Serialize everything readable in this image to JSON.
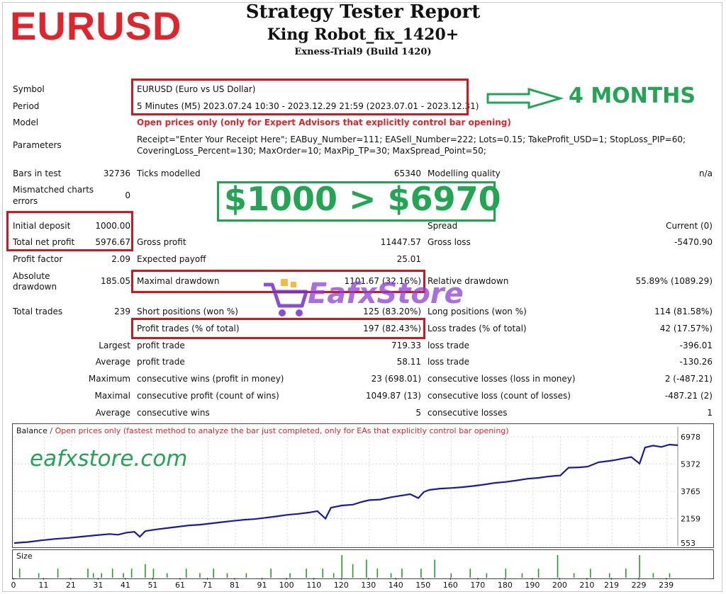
{
  "header": {
    "symbol_logo": "EURUSD",
    "title": "Strategy Tester Report",
    "robot": "King Robot_fix_1420+",
    "build": "Exness-Trial9 (Build 1420)"
  },
  "annotations": {
    "months": "4 MONTHS",
    "growth": "$1000 > $6970",
    "watermark": "eafxstore.com",
    "store_logo": "EafxStore",
    "colors": {
      "red": "#d4151c",
      "green": "#1aa84f",
      "balance_line": "#1a1aa0"
    }
  },
  "settings": {
    "symbol_label": "Symbol",
    "symbol_value": "EURUSD (Euro vs US Dollar)",
    "period_label": "Period",
    "period_value": "5 Minutes (M5) 2023.07.24 10:30 - 2023.12.29 21:59 (2023.07.01 - 2023.12.31)",
    "model_label": "Model",
    "model_value": "Open prices only (only for Expert Advisors that explicitly control bar opening)",
    "parameters_label": "Parameters",
    "parameters_line1": "Receipt=\"Enter Your Receipt Here\"; EABuy_Number=111; EASell_Number=222; Lots=0.15; TakeProfit_USD=1; StopLoss_PIP=60;",
    "parameters_line2": "CoveringLoss_Percent=130; MaxOrder=10; MaxPip_TP=30; MaxSpread_Point=50;"
  },
  "stats": {
    "bars_label": "Bars in test",
    "bars_value": "32736",
    "ticks_label": "Ticks modelled",
    "ticks_value": "65340",
    "quality_label": "Modelling quality",
    "quality_value": "n/a",
    "mismatch_label_1": "Mismatched charts",
    "mismatch_label_2": "errors",
    "mismatch_value": "0",
    "deposit_label": "Initial deposit",
    "deposit_value": "1000.00",
    "spread_label": "Spread",
    "spread_value": "Current (0)",
    "net_label": "Total net profit",
    "net_value": "5976.67",
    "gross_profit_label": "Gross profit",
    "gross_profit_value": "11447.57",
    "gross_loss_label": "Gross loss",
    "gross_loss_value": "-5470.90",
    "pf_label": "Profit factor",
    "pf_value": "2.09",
    "payoff_label": "Expected payoff",
    "payoff_value": "25.01",
    "abs_dd_label_1": "Absolute",
    "abs_dd_label_2": "drawdown",
    "abs_dd_value": "185.05",
    "max_dd_label": "Maximal drawdown",
    "max_dd_value": "1101.67 (32.16%)",
    "rel_dd_label": "Relative drawdown",
    "rel_dd_value": "55.89% (1089.29)",
    "trades_label": "Total trades",
    "trades_value": "239",
    "short_label": "Short positions (won %)",
    "short_value": "125 (83.20%)",
    "long_label": "Long positions (won %)",
    "long_value": "114 (81.58%)",
    "profit_trades_label": "Profit trades (% of total)",
    "profit_trades_value": "197 (82.43%)",
    "loss_trades_label": "Loss trades (% of total)",
    "loss_trades_value": "42 (17.57%)",
    "largest_label": "Largest",
    "largest_pt_label": "profit trade",
    "largest_pt_value": "719.33",
    "largest_lt_label": "loss trade",
    "largest_lt_value": "-396.01",
    "average_label": "Average",
    "average_pt_label": "profit trade",
    "average_pt_value": "58.11",
    "average_lt_label": "loss trade",
    "average_lt_value": "-130.26",
    "maximum_label": "Maximum",
    "max_cw_label": "consecutive wins (profit in money)",
    "max_cw_value": "23 (698.01)",
    "max_cl_label": "consecutive losses (loss in money)",
    "max_cl_value": "2 (-487.21)",
    "maximal_label": "Maximal",
    "mxl_cp_label": "consecutive profit (count of wins)",
    "mxl_cp_value": "1049.87 (13)",
    "mxl_cl_label": "consecutive loss (count of losses)",
    "mxl_cl_value": "-487.21 (2)",
    "average2_label": "Average",
    "avg_cw_label": "consecutive wins",
    "avg_cw_value": "5",
    "avg_cl_label": "consecutive losses",
    "avg_cl_value": "1"
  },
  "chart_data": {
    "type": "line",
    "legend_name": "Balance",
    "legend_desc": "Open prices only (fastest method to analyze the bar just completed, only for EAs that explicitly control bar opening)",
    "y_ticks": [
      "6978",
      "5372",
      "3765",
      "2159",
      "553"
    ],
    "ylim": [
      553,
      6978
    ],
    "x_ticks": [
      "0",
      "11",
      "21",
      "31",
      "41",
      "51",
      "61",
      "71",
      "81",
      "91",
      "100",
      "110",
      "120",
      "130",
      "140",
      "150",
      "160",
      "170",
      "180",
      "190",
      "200",
      "210",
      "219",
      "229",
      "239"
    ],
    "xlim": [
      0,
      243
    ],
    "size_label": "Size",
    "balance": [
      [
        0,
        720
      ],
      [
        5,
        780
      ],
      [
        10,
        880
      ],
      [
        15,
        960
      ],
      [
        20,
        1020
      ],
      [
        25,
        1100
      ],
      [
        30,
        1180
      ],
      [
        35,
        1250
      ],
      [
        38,
        1210
      ],
      [
        41,
        1330
      ],
      [
        44,
        1380
      ],
      [
        46,
        1090
      ],
      [
        48,
        1420
      ],
      [
        52,
        1520
      ],
      [
        56,
        1600
      ],
      [
        60,
        1680
      ],
      [
        64,
        1760
      ],
      [
        68,
        1800
      ],
      [
        72,
        1870
      ],
      [
        76,
        1950
      ],
      [
        80,
        2020
      ],
      [
        84,
        2090
      ],
      [
        88,
        2130
      ],
      [
        92,
        2210
      ],
      [
        96,
        2290
      ],
      [
        100,
        2380
      ],
      [
        104,
        2440
      ],
      [
        108,
        2520
      ],
      [
        111,
        2600
      ],
      [
        114,
        2160
      ],
      [
        116,
        2800
      ],
      [
        120,
        2930
      ],
      [
        124,
        2980
      ],
      [
        127,
        3130
      ],
      [
        130,
        3250
      ],
      [
        134,
        3280
      ],
      [
        138,
        3420
      ],
      [
        141,
        3500
      ],
      [
        145,
        3600
      ],
      [
        148,
        3370
      ],
      [
        150,
        3730
      ],
      [
        152,
        3850
      ],
      [
        156,
        3930
      ],
      [
        160,
        3960
      ],
      [
        164,
        4010
      ],
      [
        168,
        4080
      ],
      [
        172,
        4160
      ],
      [
        176,
        4260
      ],
      [
        180,
        4320
      ],
      [
        184,
        4410
      ],
      [
        188,
        4510
      ],
      [
        192,
        4560
      ],
      [
        195,
        4630
      ],
      [
        198,
        4680
      ],
      [
        200,
        4700
      ],
      [
        203,
        5160
      ],
      [
        207,
        5180
      ],
      [
        210,
        5220
      ],
      [
        214,
        5480
      ],
      [
        218,
        5560
      ],
      [
        220,
        5610
      ],
      [
        223,
        5700
      ],
      [
        226,
        5790
      ],
      [
        229,
        5400
      ],
      [
        231,
        6350
      ],
      [
        234,
        6460
      ],
      [
        237,
        6380
      ],
      [
        240,
        6520
      ],
      [
        243,
        6480
      ]
    ],
    "size_bars": [
      [
        2,
        2
      ],
      [
        9,
        1
      ],
      [
        16,
        2
      ],
      [
        27,
        2
      ],
      [
        29,
        1
      ],
      [
        32,
        1
      ],
      [
        36,
        2
      ],
      [
        40,
        1
      ],
      [
        43,
        2
      ],
      [
        48,
        3
      ],
      [
        51,
        2
      ],
      [
        56,
        1
      ],
      [
        63,
        2
      ],
      [
        68,
        1
      ],
      [
        73,
        2
      ],
      [
        78,
        1
      ],
      [
        85,
        1
      ],
      [
        94,
        2
      ],
      [
        101,
        1
      ],
      [
        107,
        2
      ],
      [
        113,
        2
      ],
      [
        117,
        1
      ],
      [
        120,
        5
      ],
      [
        124,
        3
      ],
      [
        129,
        4
      ],
      [
        133,
        2
      ],
      [
        138,
        1
      ],
      [
        142,
        2
      ],
      [
        149,
        2
      ],
      [
        154,
        4
      ],
      [
        160,
        1
      ],
      [
        167,
        2
      ],
      [
        173,
        1
      ],
      [
        180,
        2
      ],
      [
        186,
        1
      ],
      [
        192,
        2
      ],
      [
        199,
        5
      ],
      [
        205,
        1
      ],
      [
        211,
        2
      ],
      [
        218,
        1
      ],
      [
        224,
        2
      ],
      [
        229,
        5
      ],
      [
        234,
        1
      ],
      [
        240,
        1
      ]
    ]
  }
}
